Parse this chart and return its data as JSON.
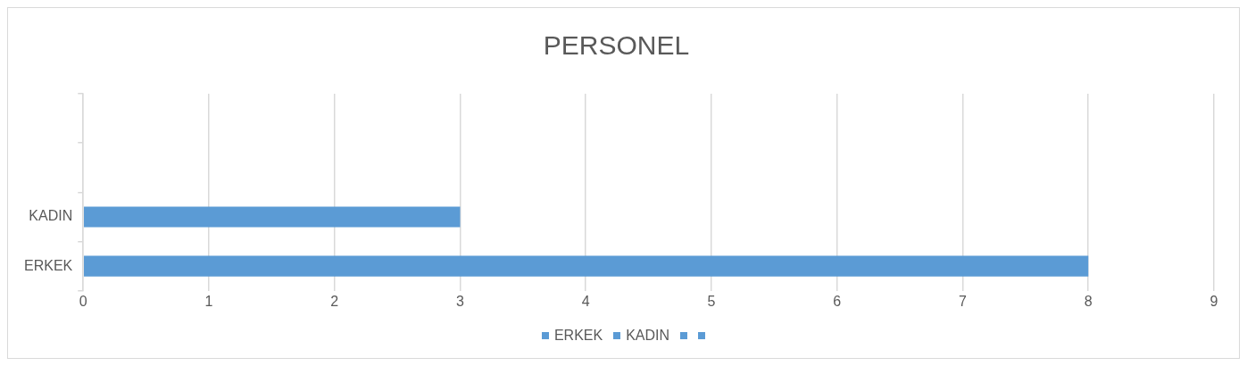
{
  "chart_data": {
    "type": "bar",
    "title": "PERSONEL",
    "orientation": "horizontal",
    "categories": [
      null,
      null,
      "KADIN",
      "ERKEK"
    ],
    "values": [
      null,
      null,
      3,
      8
    ],
    "color": "#5b9bd5",
    "xlim": [
      0,
      9
    ],
    "xticks": [
      0,
      1,
      2,
      3,
      4,
      5,
      6,
      7,
      8,
      9
    ],
    "grid": "x"
  }
}
